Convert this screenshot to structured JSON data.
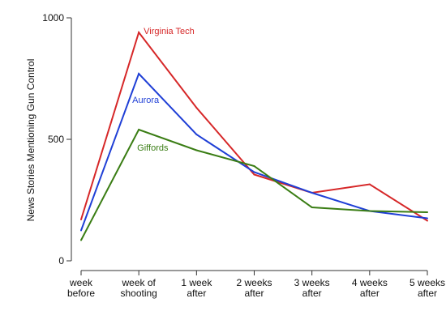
{
  "chart_data": {
    "type": "line",
    "title": "",
    "xlabel": "",
    "ylabel": "News Stories Mentioning Gun Control",
    "ylim": [
      0,
      1000
    ],
    "yticks": [
      "0",
      "500",
      "1000"
    ],
    "categories": [
      [
        "week",
        "before"
      ],
      [
        "week of",
        "shooting"
      ],
      [
        "1 week",
        "after"
      ],
      [
        "2 weeks",
        "after"
      ],
      [
        "3 weeks",
        "after"
      ],
      [
        "4 weeks",
        "after"
      ],
      [
        "5 weeks",
        "after"
      ]
    ],
    "grid": false,
    "series": [
      {
        "name": "Virginia Tech",
        "color": "#d62728",
        "values": [
          170,
          940,
          630,
          355,
          280,
          315,
          165
        ]
      },
      {
        "name": "Aurora",
        "color": "#1f3fd6",
        "values": [
          125,
          770,
          520,
          365,
          280,
          205,
          175
        ]
      },
      {
        "name": "Giffords",
        "color": "#3a7d14",
        "values": [
          85,
          540,
          455,
          390,
          220,
          205,
          200
        ]
      }
    ]
  }
}
